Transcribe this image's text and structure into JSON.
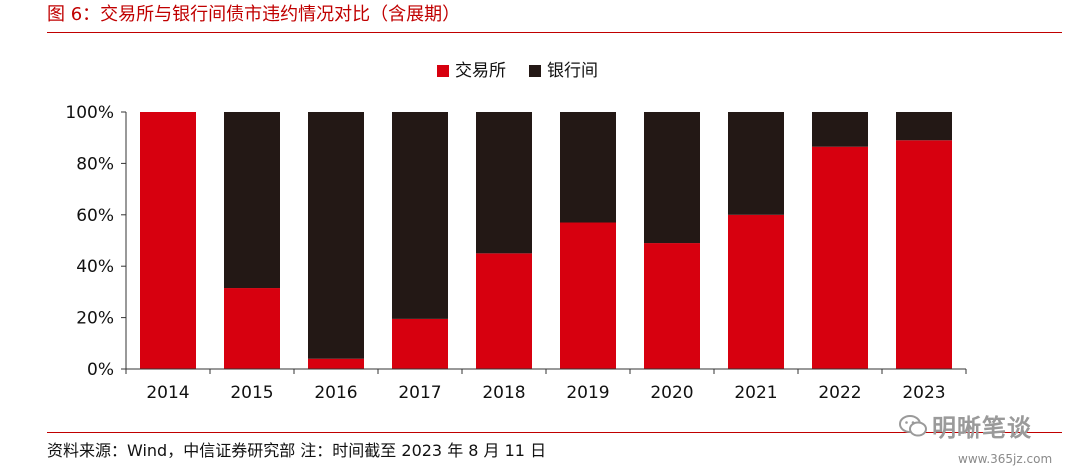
{
  "figure": {
    "title": "图 6：交易所与银行间债市违约情况对比（含展期）",
    "source": "资料来源：Wind，中信证券研究部  注：时间截至 2023 年 8 月 11 日",
    "watermark": "明晰笔谈",
    "site": "www.365jz.com"
  },
  "colors": {
    "exchange": "#d7000f",
    "interbank": "#231815",
    "accent": "#c00000"
  },
  "chart_data": {
    "type": "bar",
    "stacked": true,
    "categories": [
      "2014",
      "2015",
      "2016",
      "2017",
      "2018",
      "2019",
      "2020",
      "2021",
      "2022",
      "2023"
    ],
    "series": [
      {
        "name": "交易所",
        "values": [
          100,
          31.5,
          4,
          19.5,
          45,
          57,
          49,
          60,
          86.5,
          89
        ]
      },
      {
        "name": "银行间",
        "values": [
          0,
          68.5,
          96,
          80.5,
          55,
          43,
          51,
          40,
          13.5,
          11
        ]
      }
    ],
    "y_ticks": [
      "0%",
      "20%",
      "40%",
      "60%",
      "80%",
      "100%"
    ],
    "ylim": [
      0,
      100
    ],
    "legend_position": "top-center",
    "grid": false
  }
}
